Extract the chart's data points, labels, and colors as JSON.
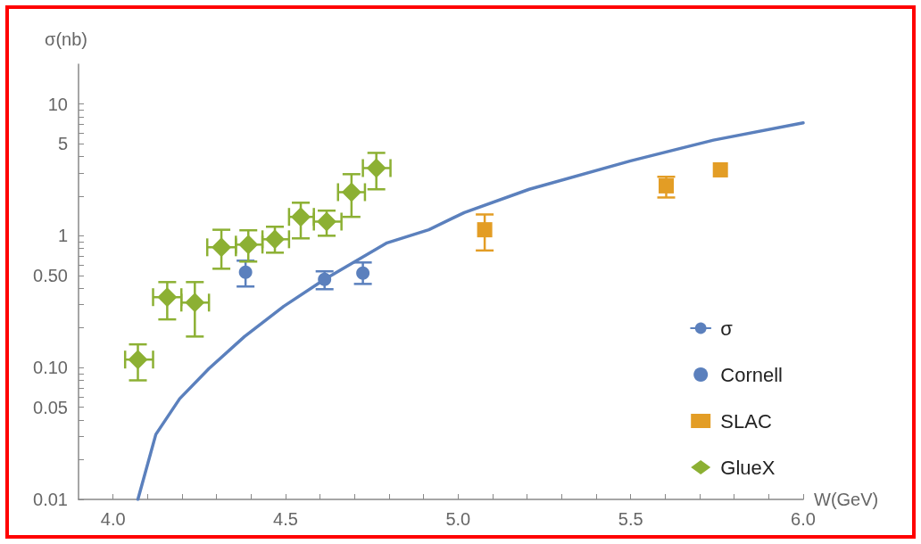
{
  "chart_data": {
    "type": "scatter",
    "xlabel": "W(GeV)",
    "ylabel": "σ(nb)",
    "log": "y",
    "grid": false,
    "legend": "bottom right",
    "xlim": [
      3.9,
      6.0
    ],
    "xticks": [
      {
        "value": 4,
        "label": "4.0"
      },
      {
        "value": 4.1,
        "label": null
      },
      {
        "value": 4.2,
        "label": null
      },
      {
        "value": 4.3,
        "label": null
      },
      {
        "value": 4.4,
        "label": null
      },
      4.5,
      {
        "value": 4.6,
        "label": null
      },
      {
        "value": 4.7,
        "label": null
      },
      {
        "value": 4.8,
        "label": null
      },
      {
        "value": 4.9,
        "label": null
      },
      {
        "value": 5,
        "label": "5.0"
      },
      {
        "value": 5.1,
        "label": null
      },
      {
        "value": 5.2,
        "label": null
      },
      {
        "value": 5.3,
        "label": null
      },
      {
        "value": 5.4,
        "label": null
      },
      5.5,
      {
        "value": 5.6,
        "label": null
      },
      {
        "value": 5.7,
        "label": null
      },
      {
        "value": 5.8,
        "label": null
      },
      {
        "value": 5.9,
        "label": null
      },
      {
        "value": 6,
        "label": "6.0"
      }
    ],
    "ylim": [
      0.01,
      20
    ],
    "yticks": [
      0.01,
      {
        "value": 0.02,
        "label": null
      },
      {
        "value": 0.03,
        "label": null
      },
      {
        "value": 0.04,
        "label": null
      },
      0.05,
      {
        "value": 0.06,
        "label": null
      },
      {
        "value": 0.07,
        "label": null
      },
      {
        "value": 0.08,
        "label": null
      },
      {
        "value": 0.09,
        "label": null
      },
      {
        "value": 0.1,
        "label": "0.10"
      },
      {
        "value": 0.2,
        "label": null
      },
      {
        "value": 0.3,
        "label": null
      },
      {
        "value": 0.4,
        "label": null
      },
      {
        "value": 0.5,
        "label": "0.50"
      },
      {
        "value": 0.6,
        "label": null
      },
      {
        "value": 0.7,
        "label": null
      },
      {
        "value": 0.8,
        "label": null
      },
      {
        "value": 0.9,
        "label": null
      },
      1,
      {
        "value": 2,
        "label": null
      },
      {
        "value": 3,
        "label": null
      },
      {
        "value": 4,
        "label": null
      },
      5,
      {
        "value": 6,
        "label": null
      },
      {
        "value": 7,
        "label": null
      },
      {
        "value": 8,
        "label": null
      },
      {
        "value": 9,
        "label": null
      },
      10
    ],
    "series": [
      {
        "name": "σ",
        "type": "line",
        "color": "#5b80bd",
        "marker": "none",
        "line_style": "solid",
        "x": [
          4.072,
          4.124,
          4.193,
          4.278,
          4.381,
          4.495,
          4.613,
          4.794,
          4.915,
          5.018,
          5.206,
          5.5,
          5.74,
          6.0
        ],
        "values": [
          0.01,
          0.0311,
          0.058,
          0.0984,
          0.172,
          0.292,
          0.467,
          0.883,
          1.11,
          1.5,
          2.25,
          3.7,
          5.31,
          7.18
        ]
      },
      {
        "name": "Cornell",
        "color": "#5b80bd",
        "marker": "circle",
        "x": [
          4.384,
          4.613,
          4.724
        ],
        "values": [
          0.528,
          0.467,
          0.52
        ],
        "errors": [
          [
            0.412,
            0.647
          ],
          [
            0.393,
            0.537
          ],
          [
            0.431,
            0.627
          ]
        ]
      },
      {
        "name": "SLAC",
        "color": "#e39d25",
        "marker": "square",
        "x": [
          5.077,
          5.603,
          5.76
        ],
        "values": [
          1.11,
          2.39,
          3.16
        ],
        "errors": [
          [
            0.773,
            1.45
          ],
          [
            1.95,
            2.8
          ],
          null
        ]
      },
      {
        "name": "GlueX",
        "color": "#8cb033",
        "marker": "diamond",
        "x": [
          4.072,
          4.157,
          4.237,
          4.314,
          4.392,
          4.469,
          4.544,
          4.619,
          4.691,
          4.763
        ],
        "values": [
          0.115,
          0.342,
          0.311,
          0.817,
          0.856,
          0.94,
          1.39,
          1.28,
          2.14,
          3.26
        ],
        "errors": [
          [
            0.08,
            0.15
          ],
          [
            0.232,
            0.445
          ],
          [
            0.172,
            0.445
          ],
          [
            0.562,
            1.11
          ],
          [
            0.637,
            1.1
          ],
          [
            0.744,
            1.17
          ],
          [
            0.955,
            1.78
          ],
          [
            1.0,
            1.55
          ],
          [
            1.39,
            2.93
          ],
          [
            2.25,
            4.25
          ]
        ],
        "xerrors": [
          [
            4.035,
            4.116
          ],
          [
            4.116,
            4.198
          ],
          [
            4.198,
            4.278
          ],
          [
            4.273,
            4.356
          ],
          [
            4.356,
            4.433
          ],
          [
            4.433,
            4.51
          ],
          [
            4.51,
            4.582
          ],
          [
            4.582,
            4.662
          ],
          [
            4.652,
            4.73
          ],
          [
            4.724,
            4.804
          ]
        ]
      }
    ]
  }
}
